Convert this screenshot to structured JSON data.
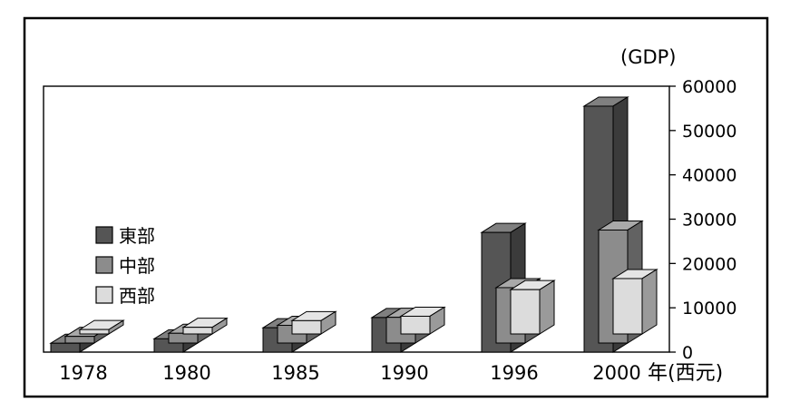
{
  "chart_data": {
    "type": "bar",
    "title": "",
    "ylabel": "(GDP)",
    "xlabel": "年(西元)",
    "categories": [
      "1978",
      "1980",
      "1985",
      "1990",
      "1996",
      "2000"
    ],
    "series": [
      {
        "name": "西部",
        "values": [
          1000,
          1500,
          3000,
          4000,
          10000,
          12500
        ]
      },
      {
        "name": "中部",
        "values": [
          1500,
          2200,
          4000,
          5800,
          12500,
          25500
        ]
      },
      {
        "name": "東部",
        "values": [
          2000,
          3000,
          5500,
          7800,
          27000,
          55500
        ]
      }
    ],
    "ylim": [
      0,
      60000
    ],
    "yticks": [
      "0",
      "10000",
      "20000",
      "30000",
      "40000",
      "50000",
      "60000"
    ],
    "legend_position": "left",
    "colors": {
      "東部": "#555555",
      "中部": "#8c8c8c",
      "西部": "#dcdcdc"
    },
    "grid": false
  }
}
